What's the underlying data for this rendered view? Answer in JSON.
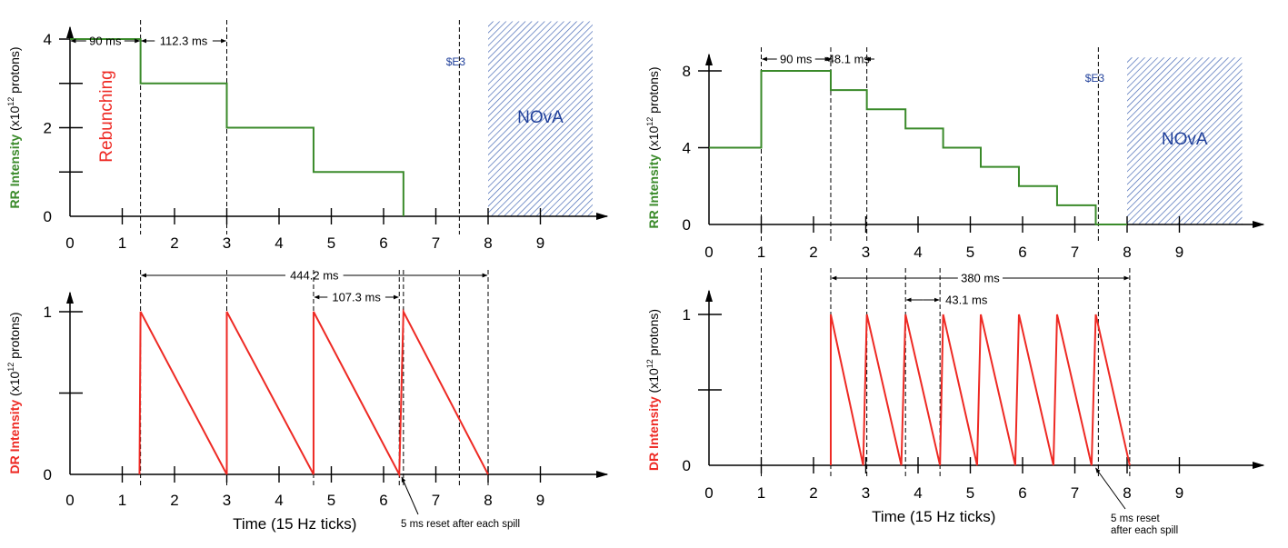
{
  "colors": {
    "rr": "#3a8a2a",
    "dr": "#ee2a24",
    "nova": "#1f3f9a",
    "hatch": "#3a5fb0",
    "rebunch": "#ee2a24"
  },
  "chart_data": [
    {
      "type": "line",
      "panel": "left-top",
      "ylabel_main": "RR Intensity",
      "ylabel_unit_pre": " (x10",
      "ylabel_sup": "12",
      "ylabel_unit_post": " protons)",
      "xlim": [
        0,
        10
      ],
      "ylim": [
        0,
        4
      ],
      "xticks": [
        "0",
        "1",
        "2",
        "3",
        "4",
        "5",
        "6",
        "7",
        "8",
        "9"
      ],
      "yticks": [
        {
          "v": 0,
          "label": "0"
        },
        {
          "v": 2,
          "label": "2"
        },
        {
          "v": 4,
          "label": "4"
        }
      ],
      "minor_yticks": [
        1,
        3
      ],
      "series": [
        {
          "points": [
            [
              0,
              4
            ],
            [
              1.35,
              4
            ],
            [
              1.35,
              3
            ],
            [
              3,
              3
            ],
            [
              3,
              2
            ],
            [
              4.66,
              2
            ],
            [
              4.66,
              1
            ],
            [
              6.38,
              1
            ],
            [
              6.38,
              0
            ]
          ]
        }
      ],
      "vlines": [
        1.35,
        3,
        7.45
      ],
      "nova_region": [
        8,
        10,
        4.4
      ],
      "nova_label": "NOvA",
      "e3_label": "$E3",
      "e3_x": 7.45,
      "rebunching_label": "Rebunching",
      "annotations": [
        {
          "text": "90 ms",
          "from": 0,
          "to": 1.35
        },
        {
          "text": "112.3 ms",
          "from": 1.35,
          "to": 3
        }
      ]
    },
    {
      "type": "line",
      "panel": "left-bottom",
      "ylabel_main": "DR Intensity",
      "ylabel_unit_pre": " (x10",
      "ylabel_sup": "12",
      "ylabel_unit_post": " protons)",
      "xlabel": "Time (15 Hz ticks)",
      "xlim": [
        0,
        10
      ],
      "ylim": [
        0,
        1
      ],
      "xticks": [
        "0",
        "1",
        "2",
        "3",
        "4",
        "5",
        "6",
        "7",
        "8",
        "9"
      ],
      "yticks": [
        {
          "v": 0,
          "label": "0"
        },
        {
          "v": 1,
          "label": "1"
        }
      ],
      "minor_yticks": [
        0.5
      ],
      "series": [
        {
          "points": [
            [
              1.33,
              0
            ],
            [
              1.35,
              1
            ],
            [
              3,
              0
            ],
            [
              3,
              1
            ],
            [
              4.66,
              0
            ],
            [
              4.66,
              1
            ],
            [
              6.3,
              0
            ],
            [
              6.38,
              1
            ],
            [
              8,
              0
            ]
          ]
        }
      ],
      "vlines": [
        1.35,
        3,
        4.66,
        6.3,
        6.38,
        7.45,
        8
      ],
      "annotations": [
        {
          "text": "444.2 ms",
          "from": 1.35,
          "to": 8
        },
        {
          "text": "107.3 ms",
          "from": 4.66,
          "to": 6.3
        }
      ],
      "note": "5 ms reset after each spill"
    },
    {
      "type": "line",
      "panel": "right-top",
      "ylabel_main": "RR Intensity",
      "ylabel_unit_pre": " (x10",
      "ylabel_sup": "12",
      "ylabel_unit_post": " protons)",
      "xlim": [
        0,
        10
      ],
      "ylim": [
        0,
        8
      ],
      "xticks": [
        "0",
        "1",
        "2",
        "3",
        "4",
        "5",
        "6",
        "7",
        "8",
        "9"
      ],
      "yticks": [
        {
          "v": 0,
          "label": "0"
        },
        {
          "v": 4,
          "label": "4"
        },
        {
          "v": 8,
          "label": "8"
        }
      ],
      "series": [
        {
          "points": [
            [
              0,
              4
            ],
            [
              1,
              4
            ],
            [
              1,
              8
            ],
            [
              2.33,
              8
            ],
            [
              2.33,
              7
            ],
            [
              3.02,
              7
            ],
            [
              3.02,
              6
            ],
            [
              3.76,
              6
            ],
            [
              3.76,
              5
            ],
            [
              4.48,
              5
            ],
            [
              4.48,
              4
            ],
            [
              5.2,
              4
            ],
            [
              5.2,
              3
            ],
            [
              5.93,
              3
            ],
            [
              5.93,
              2
            ],
            [
              6.66,
              2
            ],
            [
              6.66,
              1
            ],
            [
              7.4,
              1
            ],
            [
              7.4,
              0
            ],
            [
              8,
              0
            ]
          ]
        }
      ],
      "vlines": [
        1,
        2.33,
        3.02,
        7.45
      ],
      "nova_region": [
        8,
        10.2,
        8.7
      ],
      "nova_label": "NOvA",
      "e3_label": "$E3",
      "e3_x": 7.45,
      "annotations": [
        {
          "text": "90 ms",
          "from": 1,
          "to": 2.33
        },
        {
          "text": "48.1 ms",
          "from": 2.33,
          "to": 3.02
        }
      ]
    },
    {
      "type": "line",
      "panel": "right-bottom",
      "ylabel_main": "DR Intensity",
      "ylabel_unit_pre": " (x10",
      "ylabel_sup": "12",
      "ylabel_unit_post": " protons)",
      "xlabel": "Time (15 Hz ticks)",
      "xlim": [
        0,
        10
      ],
      "ylim": [
        0,
        1
      ],
      "xticks": [
        "0",
        "1",
        "2",
        "3",
        "4",
        "5",
        "6",
        "7",
        "8",
        "9"
      ],
      "yticks": [
        {
          "v": 0,
          "label": "0"
        },
        {
          "v": 1,
          "label": "1"
        }
      ],
      "minor_yticks": [
        0.5
      ],
      "series": [
        {
          "points": [
            [
              2.33,
              0
            ],
            [
              2.33,
              1
            ],
            [
              2.95,
              0
            ],
            [
              3.02,
              1
            ],
            [
              3.68,
              0
            ],
            [
              3.76,
              1
            ],
            [
              4.42,
              0
            ],
            [
              4.48,
              1
            ],
            [
              5.13,
              0
            ],
            [
              5.2,
              1
            ],
            [
              5.86,
              0
            ],
            [
              5.93,
              1
            ],
            [
              6.59,
              0
            ],
            [
              6.66,
              1
            ],
            [
              7.32,
              0
            ],
            [
              7.4,
              1
            ],
            [
              8.05,
              0
            ]
          ]
        }
      ],
      "vlines": [
        1,
        2.33,
        3.02,
        3.76,
        4.42,
        7.45,
        8.05
      ],
      "annotations": [
        {
          "text": "380 ms",
          "from": 2.33,
          "to": 8.05
        },
        {
          "text": "43.1 ms",
          "from": 3.76,
          "to": 4.42
        }
      ],
      "note_lines": [
        "5 ms reset",
        "after each spill"
      ]
    }
  ]
}
